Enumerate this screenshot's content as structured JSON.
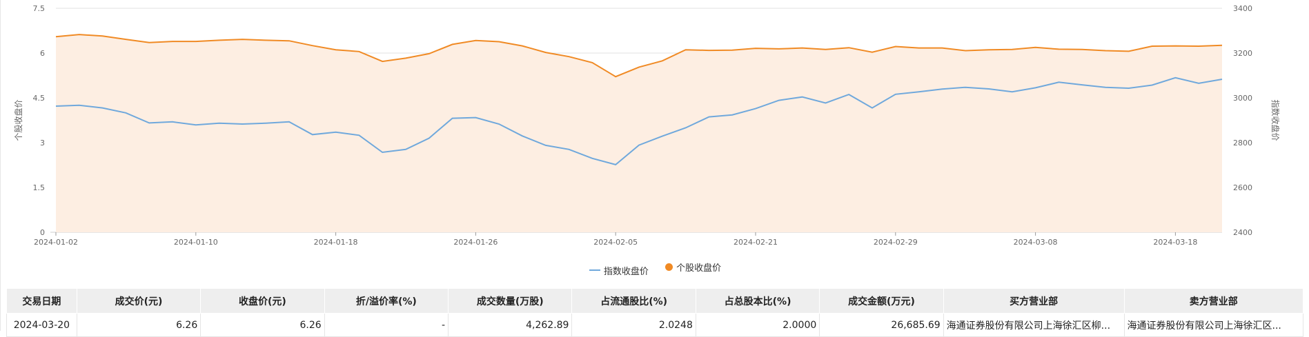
{
  "legend": {
    "index_label": "指数收盘价",
    "stock_label": "个股收盘价"
  },
  "colors": {
    "index_line": "#6fa8dc",
    "stock_line": "#f08a24",
    "stock_area": "#fdeee2",
    "grid": "#e0e0e0",
    "axis_text": "#666666"
  },
  "chart_data": {
    "type": "line",
    "left_axis": {
      "label": "个股收盘价",
      "ticks": [
        0,
        1.5,
        3,
        4.5,
        6,
        7.5
      ],
      "ylim": [
        0,
        7.5
      ]
    },
    "right_axis": {
      "label": "指数收盘价",
      "ticks": [
        2400,
        2600,
        2800,
        3000,
        3200,
        3400
      ],
      "ylim": [
        2400,
        3400
      ]
    },
    "x_ticks": [
      "2024-01-02",
      "2024-01-10",
      "2024-01-18",
      "2024-01-26",
      "2024-02-05",
      "2024-02-21",
      "2024-02-29",
      "2024-03-08",
      "2024-03-18"
    ],
    "x": [
      "2024-01-02",
      "2024-01-03",
      "2024-01-04",
      "2024-01-05",
      "2024-01-08",
      "2024-01-09",
      "2024-01-10",
      "2024-01-11",
      "2024-01-12",
      "2024-01-15",
      "2024-01-16",
      "2024-01-17",
      "2024-01-18",
      "2024-01-19",
      "2024-01-22",
      "2024-01-23",
      "2024-01-24",
      "2024-01-25",
      "2024-01-26",
      "2024-01-29",
      "2024-01-30",
      "2024-01-31",
      "2024-02-01",
      "2024-02-02",
      "2024-02-05",
      "2024-02-06",
      "2024-02-07",
      "2024-02-08",
      "2024-02-19",
      "2024-02-20",
      "2024-02-21",
      "2024-02-22",
      "2024-02-23",
      "2024-02-26",
      "2024-02-27",
      "2024-02-28",
      "2024-02-29",
      "2024-03-01",
      "2024-03-04",
      "2024-03-05",
      "2024-03-06",
      "2024-03-07",
      "2024-03-08",
      "2024-03-11",
      "2024-03-12",
      "2024-03-13",
      "2024-03-14",
      "2024-03-15",
      "2024-03-18",
      "2024-03-19",
      "2024-03-20"
    ],
    "series": [
      {
        "name": "个股收盘价",
        "axis": "left",
        "style": "area",
        "values": [
          6.55,
          6.62,
          6.57,
          6.46,
          6.35,
          6.39,
          6.39,
          6.43,
          6.46,
          6.43,
          6.41,
          6.25,
          6.11,
          6.05,
          5.72,
          5.83,
          5.98,
          6.29,
          6.42,
          6.38,
          6.24,
          6.02,
          5.88,
          5.68,
          5.21,
          5.53,
          5.74,
          6.11,
          6.09,
          6.1,
          6.16,
          6.14,
          6.17,
          6.12,
          6.18,
          6.03,
          6.22,
          6.17,
          6.17,
          6.08,
          6.11,
          6.12,
          6.19,
          6.13,
          6.12,
          6.08,
          6.06,
          6.23,
          6.24,
          6.23,
          6.26
        ]
      },
      {
        "name": "指数收盘价",
        "axis": "right",
        "style": "line",
        "values": [
          2963,
          2967,
          2955,
          2933,
          2888,
          2893,
          2879,
          2887,
          2883,
          2887,
          2893,
          2836,
          2847,
          2833,
          2757,
          2770,
          2820,
          2909,
          2912,
          2883,
          2830,
          2788,
          2770,
          2730,
          2702,
          2789,
          2829,
          2866,
          2915,
          2924,
          2952,
          2989,
          3004,
          2977,
          3015,
          2955,
          3016,
          3027,
          3039,
          3047,
          3040,
          3027,
          3045,
          3070,
          3058,
          3047,
          3043,
          3057,
          3090,
          3065,
          3083
        ]
      }
    ]
  },
  "table": {
    "headers": [
      "交易日期",
      "成交价(元)",
      "收盘价(元)",
      "折/溢价率(%)",
      "成交数量(万股)",
      "占流通股比(%)",
      "占总股本比(%)",
      "成交金额(万元)",
      "买方营业部",
      "卖方营业部"
    ],
    "rows": [
      [
        "2024-03-20",
        "6.26",
        "6.26",
        "-",
        "4,262.89",
        "2.0248",
        "2.0000",
        "26,685.69",
        "海通证券股份有限公司上海徐汇区柳...",
        "海通证券股份有限公司上海徐汇区..."
      ]
    ]
  }
}
